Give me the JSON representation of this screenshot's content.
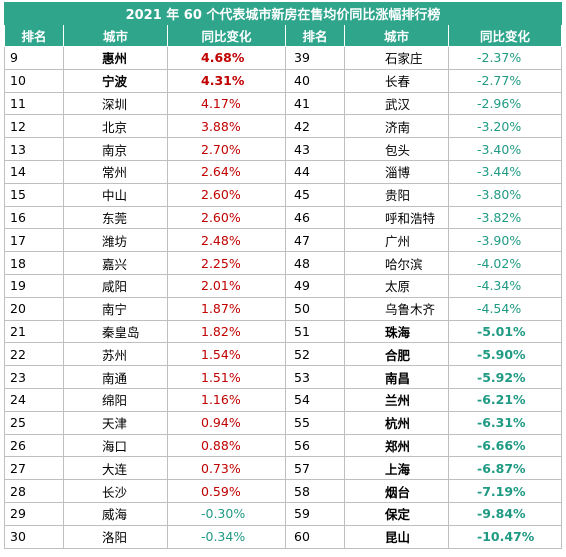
{
  "title": "2021 年 60 个代表城市新房在售均价同比涨幅排行榜",
  "columns": [
    "排名",
    "城市",
    "同比变化",
    "排名",
    "城市",
    "同比变化"
  ],
  "colors": {
    "header_bg": "#2fa58c",
    "positive": "#c00000",
    "negative": "#1f9a83"
  },
  "left": [
    {
      "rank": "9",
      "city": "惠州",
      "change": "4.68%",
      "sign": "pos",
      "bold": true
    },
    {
      "rank": "10",
      "city": "宁波",
      "change": "4.31%",
      "sign": "pos",
      "bold": true
    },
    {
      "rank": "11",
      "city": "深圳",
      "change": "4.17%",
      "sign": "pos",
      "bold": false
    },
    {
      "rank": "12",
      "city": "北京",
      "change": "3.88%",
      "sign": "pos",
      "bold": false
    },
    {
      "rank": "13",
      "city": "南京",
      "change": "2.70%",
      "sign": "pos",
      "bold": false
    },
    {
      "rank": "14",
      "city": "常州",
      "change": "2.64%",
      "sign": "pos",
      "bold": false
    },
    {
      "rank": "15",
      "city": "中山",
      "change": "2.60%",
      "sign": "pos",
      "bold": false
    },
    {
      "rank": "16",
      "city": "东莞",
      "change": "2.60%",
      "sign": "pos",
      "bold": false
    },
    {
      "rank": "17",
      "city": "潍坊",
      "change": "2.48%",
      "sign": "pos",
      "bold": false
    },
    {
      "rank": "18",
      "city": "嘉兴",
      "change": "2.25%",
      "sign": "pos",
      "bold": false
    },
    {
      "rank": "19",
      "city": "咸阳",
      "change": "2.01%",
      "sign": "pos",
      "bold": false
    },
    {
      "rank": "20",
      "city": "南宁",
      "change": "1.87%",
      "sign": "pos",
      "bold": false
    },
    {
      "rank": "21",
      "city": "秦皇岛",
      "change": "1.82%",
      "sign": "pos",
      "bold": false
    },
    {
      "rank": "22",
      "city": "苏州",
      "change": "1.54%",
      "sign": "pos",
      "bold": false
    },
    {
      "rank": "23",
      "city": "南通",
      "change": "1.51%",
      "sign": "pos",
      "bold": false
    },
    {
      "rank": "24",
      "city": "绵阳",
      "change": "1.16%",
      "sign": "pos",
      "bold": false
    },
    {
      "rank": "25",
      "city": "天津",
      "change": "0.94%",
      "sign": "pos",
      "bold": false
    },
    {
      "rank": "26",
      "city": "海口",
      "change": "0.88%",
      "sign": "pos",
      "bold": false
    },
    {
      "rank": "27",
      "city": "大连",
      "change": "0.73%",
      "sign": "pos",
      "bold": false
    },
    {
      "rank": "28",
      "city": "长沙",
      "change": "0.59%",
      "sign": "pos",
      "bold": false
    },
    {
      "rank": "29",
      "city": "威海",
      "change": "-0.30%",
      "sign": "neg",
      "bold": false
    },
    {
      "rank": "30",
      "city": "洛阳",
      "change": "-0.34%",
      "sign": "neg",
      "bold": false
    }
  ],
  "right": [
    {
      "rank": "39",
      "city": "石家庄",
      "change": "-2.37%",
      "sign": "neg",
      "bold": false
    },
    {
      "rank": "40",
      "city": "长春",
      "change": "-2.77%",
      "sign": "neg",
      "bold": false
    },
    {
      "rank": "41",
      "city": "武汉",
      "change": "-2.96%",
      "sign": "neg",
      "bold": false
    },
    {
      "rank": "42",
      "city": "济南",
      "change": "-3.20%",
      "sign": "neg",
      "bold": false
    },
    {
      "rank": "43",
      "city": "包头",
      "change": "-3.40%",
      "sign": "neg",
      "bold": false
    },
    {
      "rank": "44",
      "city": "淄博",
      "change": "-3.44%",
      "sign": "neg",
      "bold": false
    },
    {
      "rank": "45",
      "city": "贵阳",
      "change": "-3.80%",
      "sign": "neg",
      "bold": false
    },
    {
      "rank": "46",
      "city": "呼和浩特",
      "change": "-3.82%",
      "sign": "neg",
      "bold": false
    },
    {
      "rank": "47",
      "city": "广州",
      "change": "-3.90%",
      "sign": "neg",
      "bold": false
    },
    {
      "rank": "48",
      "city": "哈尔滨",
      "change": "-4.02%",
      "sign": "neg",
      "bold": false
    },
    {
      "rank": "49",
      "city": "太原",
      "change": "-4.34%",
      "sign": "neg",
      "bold": false
    },
    {
      "rank": "50",
      "city": "乌鲁木齐",
      "change": "-4.54%",
      "sign": "neg",
      "bold": false
    },
    {
      "rank": "51",
      "city": "珠海",
      "change": "-5.01%",
      "sign": "neg",
      "bold": true
    },
    {
      "rank": "52",
      "city": "合肥",
      "change": "-5.90%",
      "sign": "neg",
      "bold": true
    },
    {
      "rank": "53",
      "city": "南昌",
      "change": "-5.92%",
      "sign": "neg",
      "bold": true
    },
    {
      "rank": "54",
      "city": "兰州",
      "change": "-6.21%",
      "sign": "neg",
      "bold": true
    },
    {
      "rank": "55",
      "city": "杭州",
      "change": "-6.31%",
      "sign": "neg",
      "bold": true
    },
    {
      "rank": "56",
      "city": "郑州",
      "change": "-6.66%",
      "sign": "neg",
      "bold": true
    },
    {
      "rank": "57",
      "city": "上海",
      "change": "-6.87%",
      "sign": "neg",
      "bold": true
    },
    {
      "rank": "58",
      "city": "烟台",
      "change": "-7.19%",
      "sign": "neg",
      "bold": true
    },
    {
      "rank": "59",
      "city": "保定",
      "change": "-9.84%",
      "sign": "neg",
      "bold": true
    },
    {
      "rank": "60",
      "city": "昆山",
      "change": "-10.47%",
      "sign": "neg",
      "bold": true
    }
  ]
}
